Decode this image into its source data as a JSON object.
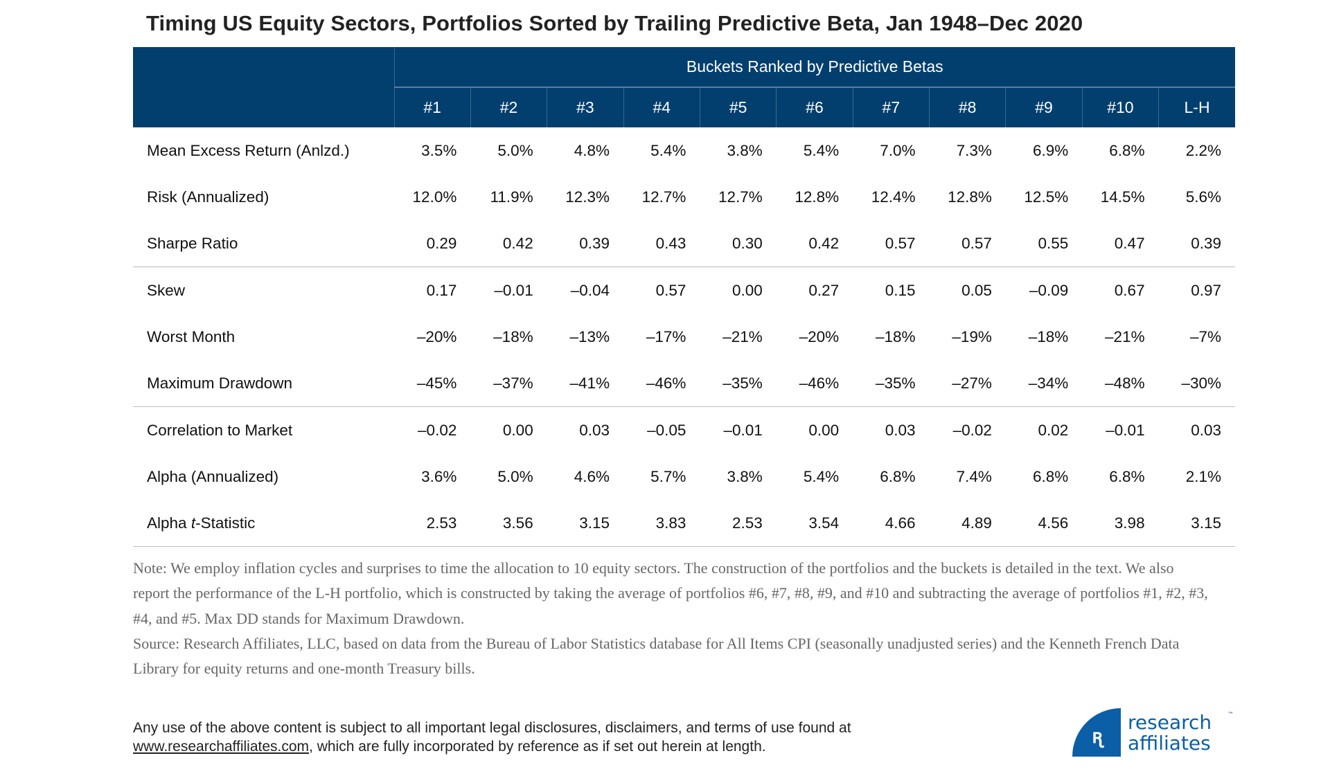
{
  "title": "Timing US Equity Sectors, Portfolios Sorted by Trailing Predictive Beta, Jan 1948–Dec 2020",
  "table": {
    "group_header": "Buckets Ranked by Predictive Betas",
    "columns": [
      "#1",
      "#2",
      "#3",
      "#4",
      "#5",
      "#6",
      "#7",
      "#8",
      "#9",
      "#10",
      "L-H"
    ],
    "rows": [
      {
        "label": "Mean Excess Return (Anlzd.)",
        "values": [
          "3.5%",
          "5.0%",
          "4.8%",
          "5.4%",
          "3.8%",
          "5.4%",
          "7.0%",
          "7.3%",
          "6.9%",
          "6.8%",
          "2.2%"
        ]
      },
      {
        "label": "Risk (Annualized)",
        "values": [
          "12.0%",
          "11.9%",
          "12.3%",
          "12.7%",
          "12.7%",
          "12.8%",
          "12.4%",
          "12.8%",
          "12.5%",
          "14.5%",
          "5.6%"
        ]
      },
      {
        "label": "Sharpe Ratio",
        "values": [
          "0.29",
          "0.42",
          "0.39",
          "0.43",
          "0.30",
          "0.42",
          "0.57",
          "0.57",
          "0.55",
          "0.47",
          "0.39"
        ]
      },
      {
        "label": "Skew",
        "values": [
          "0.17",
          "–0.01",
          "–0.04",
          "0.57",
          "0.00",
          "0.27",
          "0.15",
          "0.05",
          "–0.09",
          "0.67",
          "0.97"
        ]
      },
      {
        "label": "Worst Month",
        "values": [
          "–20%",
          "–18%",
          "–13%",
          "–17%",
          "–21%",
          "–20%",
          "–18%",
          "–19%",
          "–18%",
          "–21%",
          "–7%"
        ]
      },
      {
        "label": "Maximum Drawdown",
        "values": [
          "–45%",
          "–37%",
          "–41%",
          "–46%",
          "–35%",
          "–46%",
          "–35%",
          "–27%",
          "–34%",
          "–48%",
          "–30%"
        ]
      },
      {
        "label": "Correlation to Market",
        "values": [
          "–0.02",
          "0.00",
          "0.03",
          "–0.05",
          "–0.01",
          "0.00",
          "0.03",
          "–0.02",
          "0.02",
          "–0.01",
          "0.03"
        ]
      },
      {
        "label": "Alpha (Annualized)",
        "values": [
          "3.6%",
          "5.0%",
          "4.6%",
          "5.7%",
          "3.8%",
          "5.4%",
          "6.8%",
          "7.4%",
          "6.8%",
          "6.8%",
          "2.1%"
        ]
      },
      {
        "label_prefix": "Alpha ",
        "label_italic": "t",
        "label_suffix": "-Statistic",
        "values": [
          "2.53",
          "3.56",
          "3.15",
          "3.83",
          "2.53",
          "3.54",
          "4.66",
          "4.89",
          "4.56",
          "3.98",
          "3.15"
        ]
      }
    ]
  },
  "note": "Note: We employ inflation cycles and surprises to time the allocation to 10 equity sectors.  The construction of the portfolios and the buckets is detailed in the text. We also report the performance of the L-H portfolio, which is constructed by taking the average of portfolios #6, #7, #8, #9, and #10 and subtracting the average of portfolios #1, #2, #3, #4, and #5. Max DD stands for Maximum Drawdown.",
  "source": "Source: Research Affiliates, LLC, based on data from the Bureau of Labor Statistics database for All Items CPI (seasonally unadjusted series) and the Kenneth French Data Library for equity returns and one-month Treasury bills.",
  "footer": {
    "line1": "Any use of the above content is subject to all important legal disclosures, disclaimers, and terms of use found at",
    "link": "www.researchaffiliates.com",
    "line2_rest": ", which are fully incorporated by reference as if set out herein at length."
  },
  "logo": {
    "line1": "research",
    "line2": "affiliates",
    "tm": "™",
    "color": "#0a5fa6"
  },
  "colors": {
    "header_bg": "#023f6e"
  }
}
